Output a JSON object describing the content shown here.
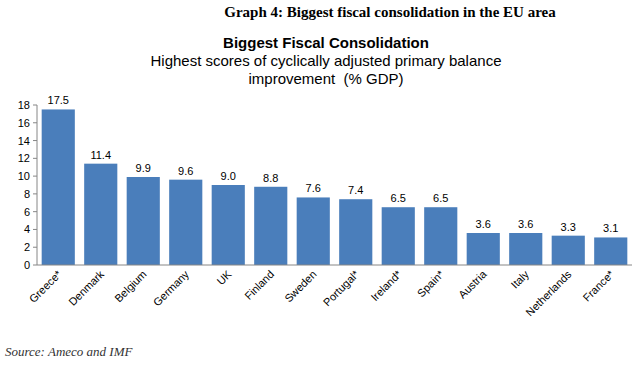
{
  "chart_data": {
    "type": "bar",
    "caption": "Graph 4: Biggest fiscal consolidation in the EU area",
    "title": "Biggest Fiscal Consolidation",
    "subtitle": "Highest scores of cyclically adjusted primary balance improvement  (% GDP)",
    "source": "Source: Ameco and IMF",
    "categories": [
      "Greece*",
      "Denmark",
      "Belgium",
      "Germany",
      "UK",
      "Finland",
      "Sweden",
      "Portugal*",
      "Ireland*",
      "Spain*",
      "Austria",
      "Italy",
      "Netherlands",
      "France*"
    ],
    "values": [
      17.5,
      11.4,
      9.9,
      9.6,
      9.0,
      8.8,
      7.6,
      7.4,
      6.5,
      6.5,
      3.6,
      3.6,
      3.3,
      3.1
    ],
    "value_labels": [
      "17.5",
      "11.4",
      "9.9",
      "9.6",
      "9.0",
      "8.8",
      "7.6",
      "7.4",
      "6.5",
      "6.5",
      "3.6",
      "3.6",
      "3.3",
      "3.1"
    ],
    "color": "#4a7ebb",
    "ylim": [
      0,
      18
    ],
    "yticks": [
      0,
      2,
      4,
      6,
      8,
      10,
      12,
      14,
      16,
      18
    ],
    "grid": false,
    "data_labels": true
  }
}
